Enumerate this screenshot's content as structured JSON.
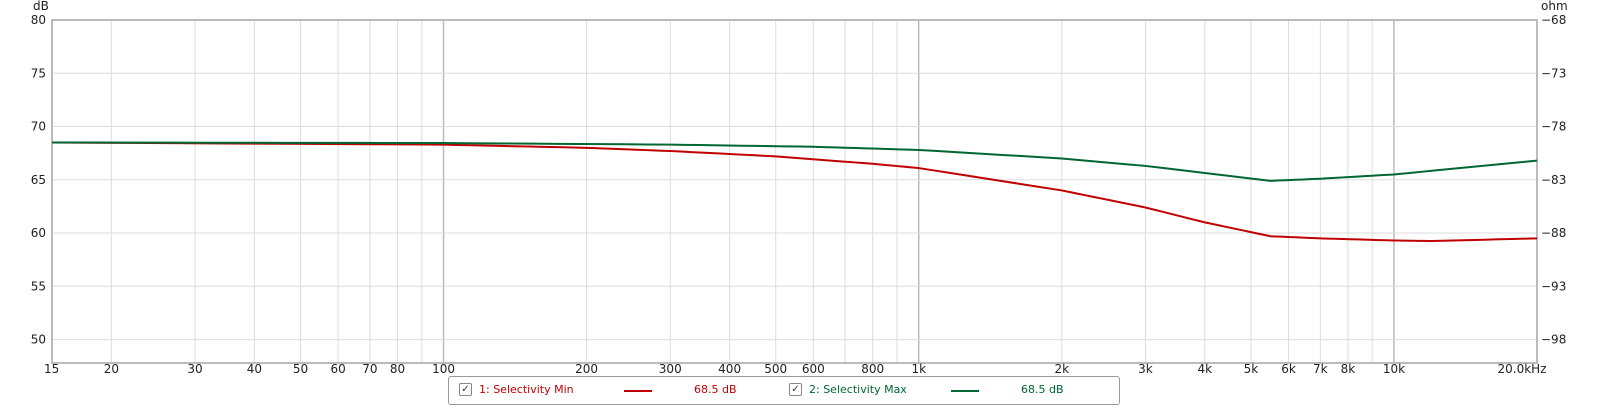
{
  "chart_data": {
    "type": "line",
    "x_scale": "log",
    "xlim": [
      15,
      20000
    ],
    "ylim": [
      47.8,
      80
    ],
    "left_axis_label": "dB",
    "right_axis_label": "ohm",
    "y_ticks": [
      80,
      75,
      70,
      65,
      60,
      55,
      50
    ],
    "y_tick_labels": [
      "80",
      "75",
      "70",
      "65",
      "60",
      "55",
      "50"
    ],
    "y2_tick_labels": [
      "-68",
      "-73",
      "-78",
      "-83",
      "-88",
      "-93",
      "-98"
    ],
    "x_ticks": [
      15,
      20,
      30,
      40,
      50,
      60,
      70,
      80,
      100,
      200,
      300,
      400,
      500,
      600,
      800,
      1000,
      2000,
      3000,
      4000,
      5000,
      6000,
      7000,
      8000,
      10000,
      20000
    ],
    "x_tick_labels": [
      "15",
      "20",
      "30",
      "40",
      "50",
      "60",
      "70",
      "80",
      "100",
      "200",
      "300",
      "400",
      "500",
      "600",
      "800",
      "1k",
      "2k",
      "3k",
      "4k",
      "5k",
      "6k",
      "7k",
      "8k",
      "10k",
      "20.0kHz"
    ],
    "x_grid": [
      15,
      20,
      30,
      40,
      50,
      60,
      70,
      80,
      90,
      100,
      200,
      300,
      400,
      500,
      600,
      700,
      800,
      900,
      1000,
      2000,
      3000,
      4000,
      5000,
      6000,
      7000,
      8000,
      9000,
      10000,
      20000
    ],
    "x_major_grid": [
      100,
      1000,
      10000
    ],
    "grid": true,
    "series": [
      {
        "name": "1: Selectivity Min",
        "color": "#c00000",
        "readout": "68.5 dB",
        "checked": true,
        "x": [
          15,
          100,
          200,
          300,
          500,
          800,
          1000,
          2000,
          3000,
          4000,
          5500,
          7000,
          10000,
          12000,
          20000
        ],
        "y": [
          68.5,
          68.3,
          68.0,
          67.7,
          67.2,
          66.5,
          66.1,
          64.0,
          62.4,
          61.0,
          59.7,
          59.5,
          59.3,
          59.25,
          59.5
        ]
      },
      {
        "name": "2: Selectivity Max",
        "color": "#006633",
        "readout": "68.5 dB",
        "checked": true,
        "x": [
          15,
          100,
          300,
          600,
          1000,
          2000,
          3000,
          5500,
          7000,
          10000,
          20000
        ],
        "y": [
          68.5,
          68.45,
          68.3,
          68.1,
          67.8,
          67.0,
          66.3,
          64.9,
          65.1,
          65.5,
          66.8
        ]
      }
    ]
  },
  "legend": {
    "check": "✓"
  }
}
